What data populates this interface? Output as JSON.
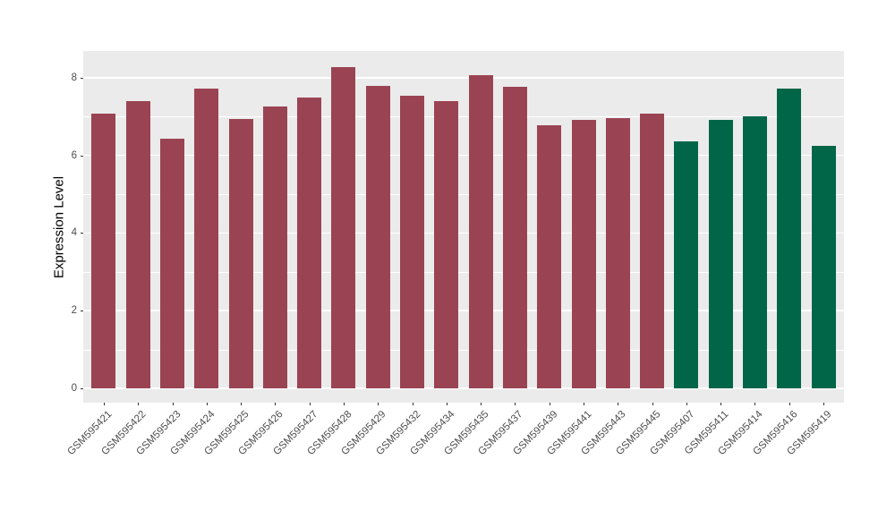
{
  "chart_data": {
    "type": "bar",
    "title": "",
    "xlabel": "",
    "ylabel": "Expression Level",
    "yticks": [
      0,
      2,
      4,
      6,
      8
    ],
    "ylim": [
      -0.37,
      8.69
    ],
    "minor_gridlines": [
      1,
      3,
      5,
      7
    ],
    "grid": "on",
    "legend": "none",
    "categories": [
      "GSM595421",
      "GSM595422",
      "GSM595423",
      "GSM595424",
      "GSM595425",
      "GSM595426",
      "GSM595427",
      "GSM595428",
      "GSM595429",
      "GSM595432",
      "GSM595434",
      "GSM595435",
      "GSM595437",
      "GSM595439",
      "GSM595441",
      "GSM595443",
      "GSM595445",
      "GSM595407",
      "GSM595411",
      "GSM595414",
      "GSM595416",
      "GSM595419"
    ],
    "values": [
      7.08,
      7.41,
      6.44,
      7.72,
      6.94,
      7.27,
      7.49,
      8.27,
      7.79,
      7.53,
      7.41,
      8.06,
      7.77,
      6.78,
      6.91,
      6.96,
      7.08,
      6.36,
      6.91,
      7.0,
      7.72,
      6.25
    ],
    "bar_groups": [
      "red",
      "red",
      "red",
      "red",
      "red",
      "red",
      "red",
      "red",
      "red",
      "red",
      "red",
      "red",
      "red",
      "red",
      "red",
      "red",
      "red",
      "green",
      "green",
      "green",
      "green",
      "green"
    ],
    "group_colors": {
      "red": "#9A4453",
      "green": "#006647"
    }
  },
  "style": {
    "panel_bg": "#EBEBEB",
    "grid_color": "#FFFFFF",
    "axis_text_color": "#4D4D4D",
    "axis_title_color": "#000000",
    "tick_color": "#333333",
    "page_bg": "#FFFFFF"
  }
}
